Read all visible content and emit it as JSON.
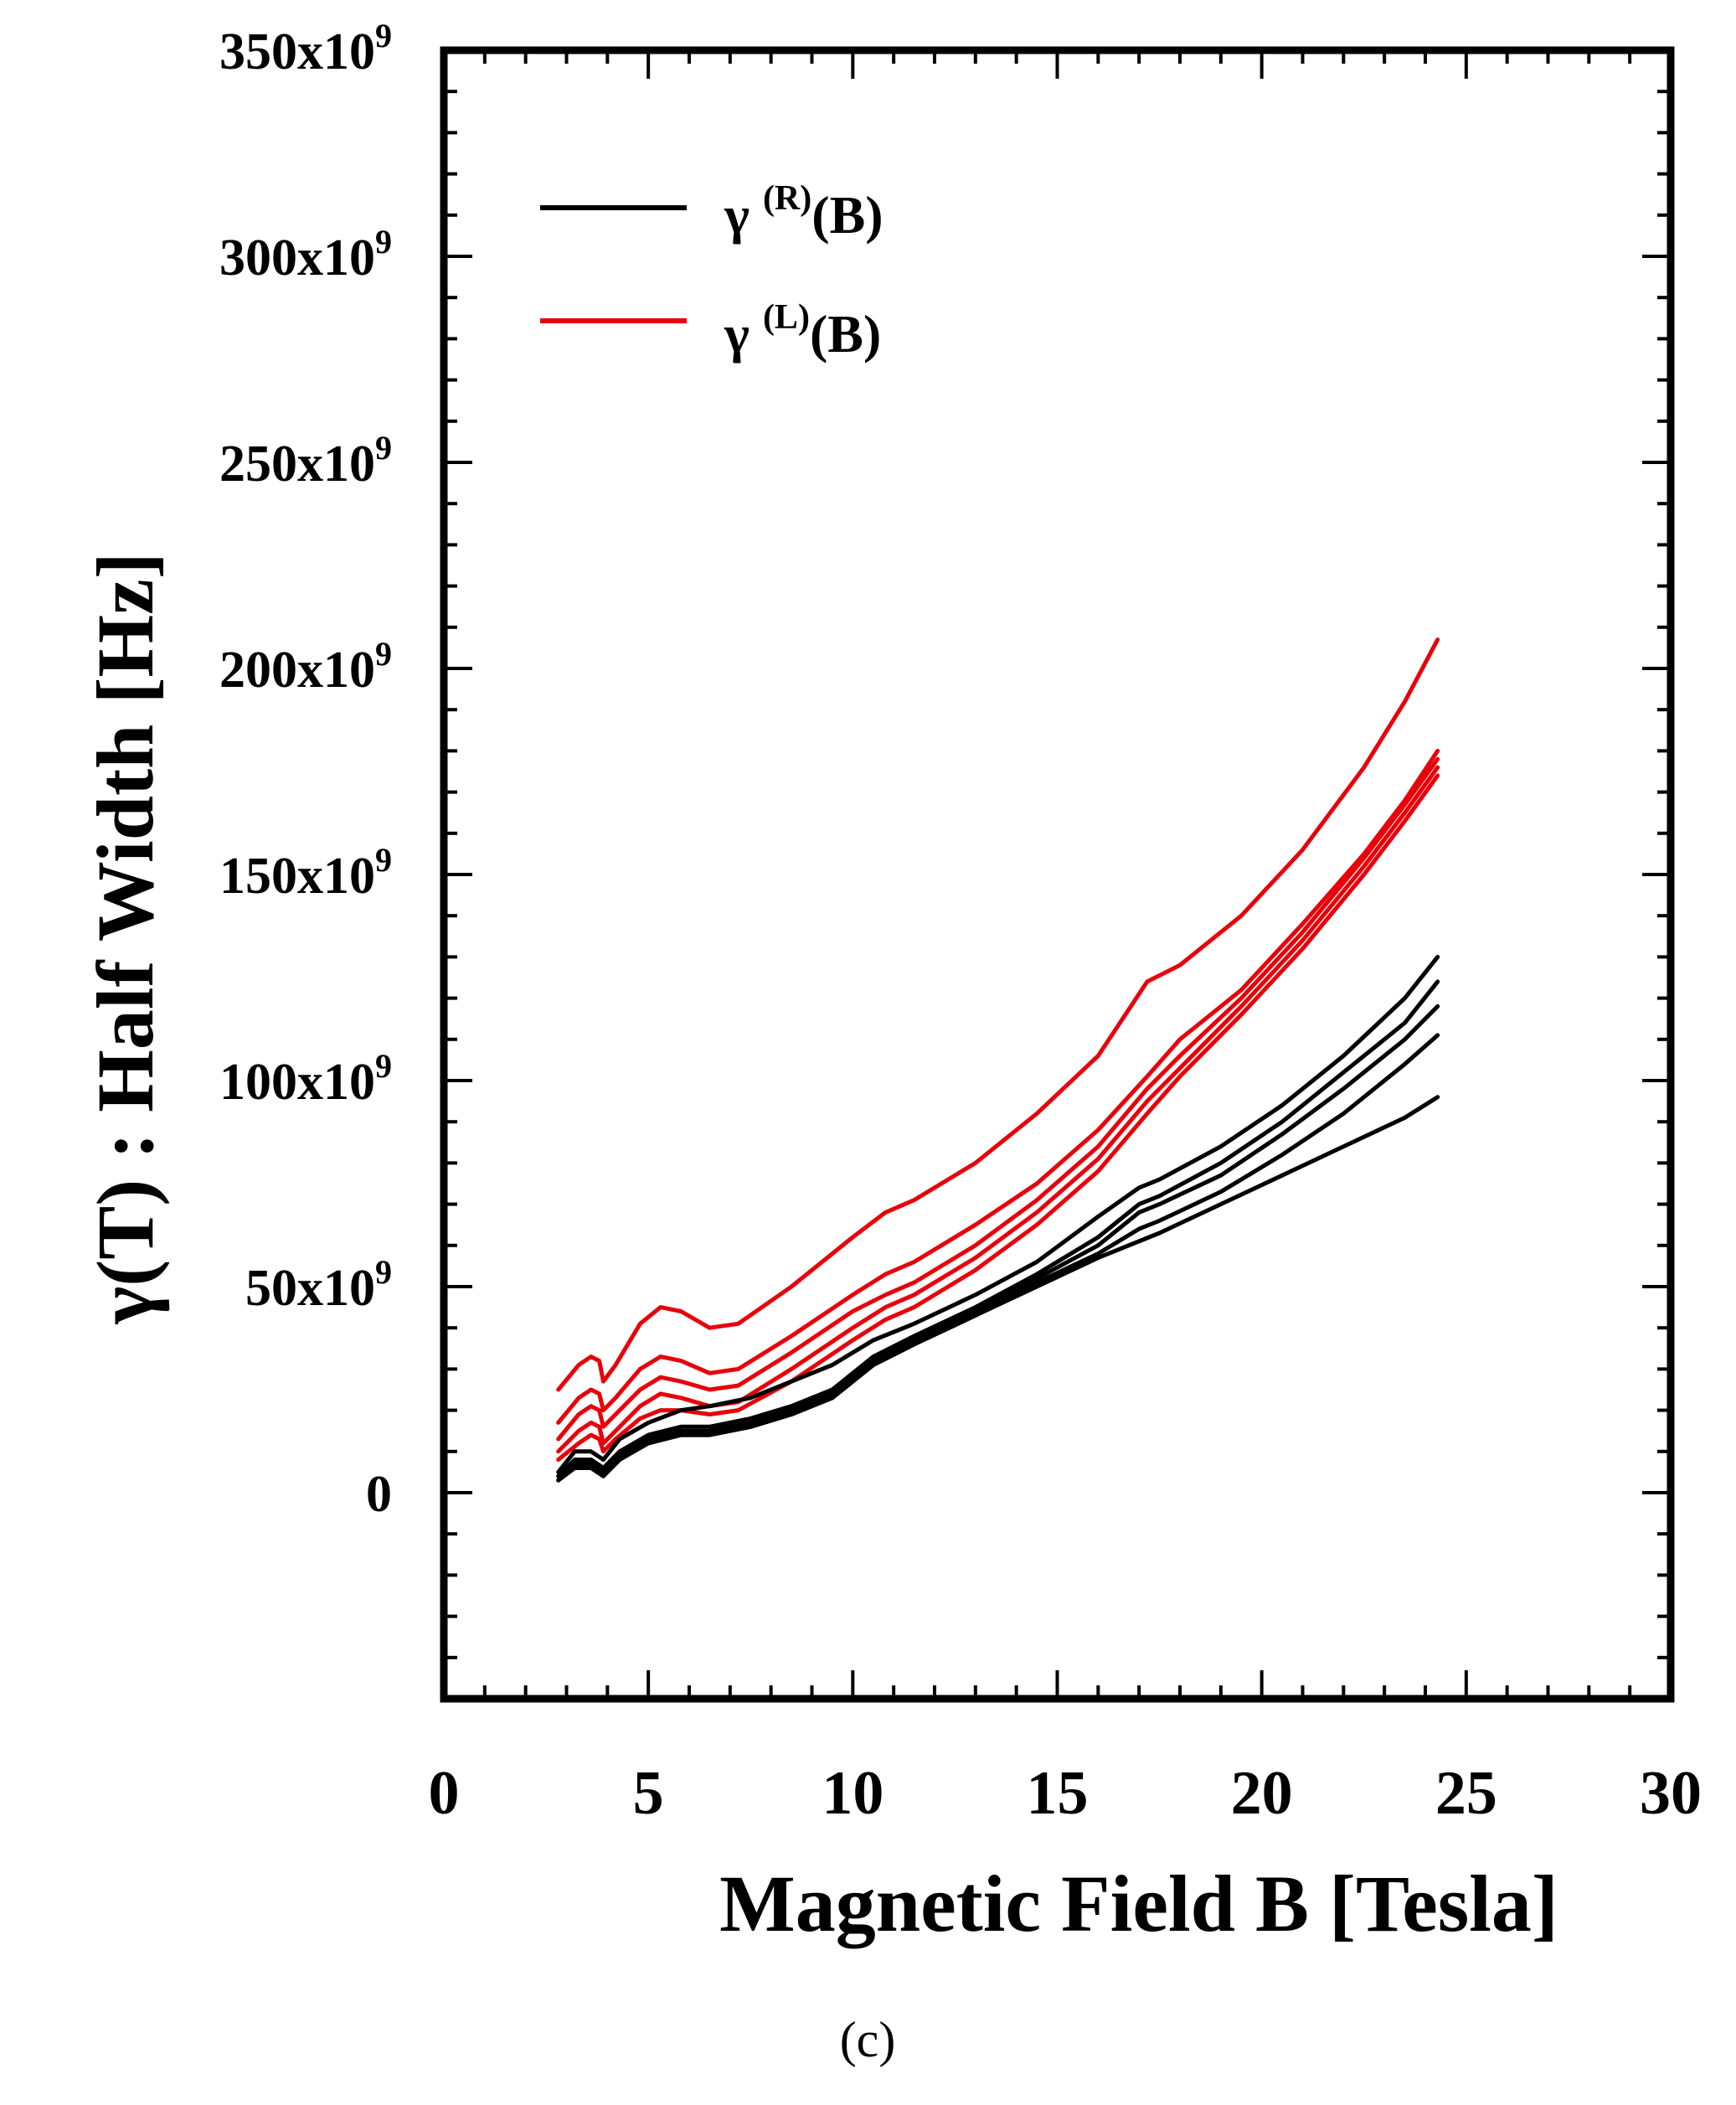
{
  "chart_data": {
    "type": "line",
    "title": "",
    "caption": "(c)",
    "xlabel": "Magnetic Field B [Tesla]",
    "ylabel": "γ(T) :  Half Width [Hz]",
    "xlim": [
      0,
      30
    ],
    "ylim": [
      -50,
      350
    ],
    "x_ticks": [
      {
        "value": 0,
        "label": "0"
      },
      {
        "value": 5,
        "label": "5"
      },
      {
        "value": 10,
        "label": "10"
      },
      {
        "value": 15,
        "label": "15"
      },
      {
        "value": 20,
        "label": "20"
      },
      {
        "value": 25,
        "label": "25"
      },
      {
        "value": 30,
        "label": "30"
      }
    ],
    "y_ticks": [
      {
        "value": 0,
        "label": "0"
      },
      {
        "value": 50,
        "label": "50x10",
        "exp": "9"
      },
      {
        "value": 100,
        "label": "100x10",
        "exp": "9"
      },
      {
        "value": 150,
        "label": "150x10",
        "exp": "9"
      },
      {
        "value": 200,
        "label": "200x10",
        "exp": "9"
      },
      {
        "value": 250,
        "label": "250x10",
        "exp": "9"
      },
      {
        "value": 300,
        "label": "300x10",
        "exp": "9"
      },
      {
        "value": 350,
        "label": "350x10",
        "exp": "9"
      }
    ],
    "y_unit_note": "values in units of 10^9 Hz",
    "legend": [
      {
        "symbol": "γ",
        "sup": "(R)",
        "suffix": "(B)",
        "color": "#000000"
      },
      {
        "symbol": "γ",
        "sup": "(L)",
        "suffix": "(B)",
        "color": "#e8000b"
      }
    ],
    "series": [
      {
        "name": "γ(L)(B) #1",
        "group": "L",
        "color": "#e8000b",
        "points": [
          [
            2.8,
            25
          ],
          [
            3.3,
            31
          ],
          [
            3.6,
            33
          ],
          [
            3.8,
            32
          ],
          [
            3.9,
            27
          ],
          [
            4.2,
            31
          ],
          [
            4.8,
            41
          ],
          [
            5.3,
            45
          ],
          [
            5.8,
            44
          ],
          [
            6.5,
            40
          ],
          [
            7.2,
            41
          ],
          [
            8.5,
            50
          ],
          [
            10,
            62
          ],
          [
            10.8,
            68
          ],
          [
            11.5,
            71
          ],
          [
            13,
            80
          ],
          [
            14.5,
            92
          ],
          [
            16,
            106
          ],
          [
            17.2,
            124
          ],
          [
            18,
            128
          ],
          [
            19.5,
            140
          ],
          [
            21,
            156
          ],
          [
            22.5,
            176
          ],
          [
            23.5,
            192
          ],
          [
            24.3,
            207
          ]
        ]
      },
      {
        "name": "γ(L)(B) #2",
        "group": "L",
        "color": "#e8000b",
        "points": [
          [
            2.8,
            17
          ],
          [
            3.3,
            23
          ],
          [
            3.6,
            25
          ],
          [
            3.8,
            24
          ],
          [
            3.9,
            20
          ],
          [
            4.2,
            23
          ],
          [
            4.8,
            30
          ],
          [
            5.3,
            33
          ],
          [
            5.8,
            32
          ],
          [
            6.5,
            29
          ],
          [
            7.2,
            30
          ],
          [
            8.5,
            38
          ],
          [
            10,
            48
          ],
          [
            10.8,
            53
          ],
          [
            11.5,
            56
          ],
          [
            13,
            65
          ],
          [
            14.5,
            75
          ],
          [
            16,
            88
          ],
          [
            17.2,
            101
          ],
          [
            18,
            110
          ],
          [
            19.5,
            122
          ],
          [
            21,
            138
          ],
          [
            22.5,
            155
          ],
          [
            23.5,
            168
          ],
          [
            24.3,
            180
          ]
        ]
      },
      {
        "name": "γ(L)(B) #3",
        "group": "L",
        "color": "#e8000b",
        "points": [
          [
            2.8,
            13
          ],
          [
            3.3,
            19
          ],
          [
            3.6,
            21
          ],
          [
            3.8,
            20
          ],
          [
            3.9,
            16
          ],
          [
            4.2,
            19
          ],
          [
            4.8,
            25
          ],
          [
            5.3,
            28
          ],
          [
            5.8,
            27
          ],
          [
            6.5,
            25
          ],
          [
            7.2,
            26
          ],
          [
            8.5,
            34
          ],
          [
            10,
            44
          ],
          [
            10.8,
            48
          ],
          [
            11.5,
            51
          ],
          [
            13,
            60
          ],
          [
            14.5,
            71
          ],
          [
            16,
            84
          ],
          [
            17.2,
            98
          ],
          [
            18,
            106
          ],
          [
            19.5,
            120
          ],
          [
            21,
            136
          ],
          [
            22.5,
            154
          ],
          [
            23.5,
            167
          ],
          [
            24.3,
            178
          ]
        ]
      },
      {
        "name": "γ(L)(B) #4",
        "group": "L",
        "color": "#e8000b",
        "points": [
          [
            2.8,
            10
          ],
          [
            3.3,
            15
          ],
          [
            3.6,
            17
          ],
          [
            3.8,
            16
          ],
          [
            3.9,
            12
          ],
          [
            4.2,
            15
          ],
          [
            4.8,
            21
          ],
          [
            5.3,
            24
          ],
          [
            5.8,
            23
          ],
          [
            6.5,
            21
          ],
          [
            7.2,
            22
          ],
          [
            8.5,
            30
          ],
          [
            10,
            40
          ],
          [
            10.8,
            45
          ],
          [
            11.5,
            48
          ],
          [
            13,
            57
          ],
          [
            14.5,
            68
          ],
          [
            16,
            81
          ],
          [
            17.2,
            95
          ],
          [
            18,
            103
          ],
          [
            19.5,
            118
          ],
          [
            21,
            134
          ],
          [
            22.5,
            152
          ],
          [
            23.5,
            165
          ],
          [
            24.3,
            176
          ]
        ]
      },
      {
        "name": "γ(L)(B) #5",
        "group": "L",
        "color": "#e8000b",
        "points": [
          [
            2.8,
            8
          ],
          [
            3.3,
            12
          ],
          [
            3.6,
            14
          ],
          [
            3.8,
            13
          ],
          [
            3.9,
            10
          ],
          [
            4.2,
            13
          ],
          [
            4.8,
            18
          ],
          [
            5.3,
            20
          ],
          [
            5.8,
            20
          ],
          [
            6.5,
            19
          ],
          [
            7.2,
            20
          ],
          [
            8.5,
            27
          ],
          [
            10,
            37
          ],
          [
            10.8,
            42
          ],
          [
            11.5,
            45
          ],
          [
            13,
            54
          ],
          [
            14.5,
            65
          ],
          [
            16,
            78
          ],
          [
            17.2,
            92
          ],
          [
            18,
            101
          ],
          [
            19.5,
            116
          ],
          [
            21,
            132
          ],
          [
            22.5,
            150
          ],
          [
            23.5,
            163
          ],
          [
            24.3,
            174
          ]
        ]
      },
      {
        "name": "γ(R)(B) #1",
        "group": "R",
        "color": "#000000",
        "points": [
          [
            2.8,
            5
          ],
          [
            3.2,
            10
          ],
          [
            3.6,
            10
          ],
          [
            3.9,
            8
          ],
          [
            4.3,
            13
          ],
          [
            5,
            17
          ],
          [
            5.8,
            20
          ],
          [
            6.5,
            21
          ],
          [
            7.5,
            23
          ],
          [
            8.5,
            27
          ],
          [
            9.5,
            31
          ],
          [
            10.5,
            37
          ],
          [
            11.5,
            41
          ],
          [
            13,
            48
          ],
          [
            14.5,
            56
          ],
          [
            16,
            67
          ],
          [
            17,
            74
          ],
          [
            17.5,
            76
          ],
          [
            19,
            84
          ],
          [
            20.5,
            94
          ],
          [
            22,
            106
          ],
          [
            23.5,
            120
          ],
          [
            24.3,
            130
          ]
        ]
      },
      {
        "name": "γ(R)(B) #2",
        "group": "R",
        "color": "#000000",
        "points": [
          [
            2.8,
            4
          ],
          [
            3.2,
            8
          ],
          [
            3.6,
            8
          ],
          [
            3.9,
            6
          ],
          [
            4.3,
            10
          ],
          [
            5,
            14
          ],
          [
            5.8,
            16
          ],
          [
            6.5,
            16
          ],
          [
            7.5,
            18
          ],
          [
            8.5,
            21
          ],
          [
            9.5,
            25
          ],
          [
            10.5,
            33
          ],
          [
            11.5,
            38
          ],
          [
            13,
            45
          ],
          [
            14.5,
            53
          ],
          [
            16,
            62
          ],
          [
            17,
            70
          ],
          [
            17.5,
            72
          ],
          [
            19,
            80
          ],
          [
            20.5,
            90
          ],
          [
            22,
            102
          ],
          [
            23.5,
            114
          ],
          [
            24.3,
            124
          ]
        ]
      },
      {
        "name": "γ(R)(B) #3",
        "group": "R",
        "color": "#000000",
        "points": [
          [
            2.8,
            4
          ],
          [
            3.2,
            7
          ],
          [
            3.6,
            7
          ],
          [
            3.9,
            5
          ],
          [
            4.3,
            9
          ],
          [
            5,
            13
          ],
          [
            5.8,
            15
          ],
          [
            6.5,
            15
          ],
          [
            7.5,
            17
          ],
          [
            8.5,
            20
          ],
          [
            9.5,
            24
          ],
          [
            10.5,
            32
          ],
          [
            11.5,
            37
          ],
          [
            13,
            44
          ],
          [
            14.5,
            52
          ],
          [
            16,
            60
          ],
          [
            17,
            68
          ],
          [
            17.5,
            70
          ],
          [
            19,
            77
          ],
          [
            20.5,
            87
          ],
          [
            22,
            98
          ],
          [
            23.5,
            110
          ],
          [
            24.3,
            118
          ]
        ]
      },
      {
        "name": "γ(R)(B) #4",
        "group": "R",
        "color": "#000000",
        "points": [
          [
            2.8,
            3
          ],
          [
            3.2,
            7
          ],
          [
            3.6,
            7
          ],
          [
            3.9,
            5
          ],
          [
            4.3,
            9
          ],
          [
            5,
            12
          ],
          [
            5.8,
            14
          ],
          [
            6.5,
            14
          ],
          [
            7.5,
            16
          ],
          [
            8.5,
            19
          ],
          [
            9.5,
            23
          ],
          [
            10.5,
            31
          ],
          [
            11.5,
            36
          ],
          [
            13,
            43
          ],
          [
            14.5,
            51
          ],
          [
            16,
            58
          ],
          [
            17,
            64
          ],
          [
            17.5,
            66
          ],
          [
            19,
            73
          ],
          [
            20.5,
            82
          ],
          [
            22,
            92
          ],
          [
            23.5,
            104
          ],
          [
            24.3,
            111
          ]
        ]
      },
      {
        "name": "γ(R)(B) #5",
        "group": "R",
        "color": "#000000",
        "points": [
          [
            2.8,
            3
          ],
          [
            3.2,
            6
          ],
          [
            3.6,
            6
          ],
          [
            3.9,
            4
          ],
          [
            4.3,
            8
          ],
          [
            5,
            12
          ],
          [
            5.8,
            14
          ],
          [
            6.5,
            14
          ],
          [
            7.5,
            16
          ],
          [
            8.5,
            19
          ],
          [
            9.5,
            23
          ],
          [
            10.5,
            31
          ],
          [
            11.5,
            36
          ],
          [
            13,
            43
          ],
          [
            14.5,
            50
          ],
          [
            16,
            57
          ],
          [
            17.5,
            63
          ],
          [
            19,
            70
          ],
          [
            20.5,
            77
          ],
          [
            22,
            84
          ],
          [
            23.5,
            91
          ],
          [
            24.3,
            96
          ]
        ]
      }
    ]
  }
}
